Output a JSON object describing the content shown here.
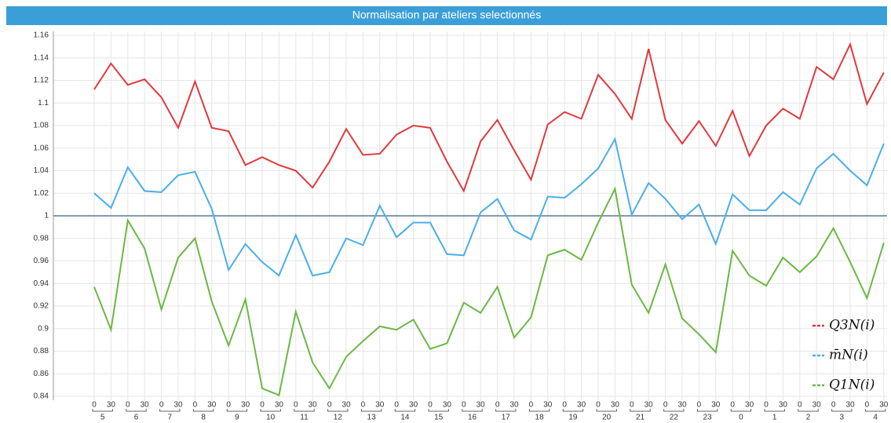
{
  "chart_data": {
    "type": "line",
    "title": "Normalisation par ateliers selectionnés",
    "categories": [
      [
        "5",
        "0"
      ],
      [
        "5",
        "30"
      ],
      [
        "6",
        "0"
      ],
      [
        "6",
        "30"
      ],
      [
        "7",
        "0"
      ],
      [
        "7",
        "30"
      ],
      [
        "8",
        "0"
      ],
      [
        "8",
        "30"
      ],
      [
        "9",
        "0"
      ],
      [
        "9",
        "30"
      ],
      [
        "10",
        "0"
      ],
      [
        "10",
        "30"
      ],
      [
        "11",
        "0"
      ],
      [
        "11",
        "30"
      ],
      [
        "12",
        "0"
      ],
      [
        "12",
        "30"
      ],
      [
        "13",
        "0"
      ],
      [
        "13",
        "30"
      ],
      [
        "14",
        "0"
      ],
      [
        "14",
        "30"
      ],
      [
        "15",
        "0"
      ],
      [
        "15",
        "30"
      ],
      [
        "16",
        "0"
      ],
      [
        "16",
        "30"
      ],
      [
        "17",
        "0"
      ],
      [
        "17",
        "30"
      ],
      [
        "18",
        "0"
      ],
      [
        "18",
        "30"
      ],
      [
        "19",
        "0"
      ],
      [
        "19",
        "30"
      ],
      [
        "20",
        "0"
      ],
      [
        "20",
        "30"
      ],
      [
        "21",
        "0"
      ],
      [
        "21",
        "30"
      ],
      [
        "22",
        "0"
      ],
      [
        "22",
        "30"
      ],
      [
        "23",
        "0"
      ],
      [
        "23",
        "30"
      ],
      [
        "0",
        "0"
      ],
      [
        "0",
        "30"
      ],
      [
        "1",
        "0"
      ],
      [
        "1",
        "30"
      ],
      [
        "2",
        "0"
      ],
      [
        "2",
        "30"
      ],
      [
        "3",
        "0"
      ],
      [
        "3",
        "30"
      ],
      [
        "4",
        "0"
      ],
      [
        "4",
        "30"
      ]
    ],
    "series": [
      {
        "name": "Q3N(i)",
        "color": "#e0393e",
        "values": [
          1.112,
          1.135,
          1.116,
          1.121,
          1.105,
          1.078,
          1.119,
          1.078,
          1.075,
          1.045,
          1.052,
          1.045,
          1.04,
          1.025,
          1.048,
          1.077,
          1.054,
          1.055,
          1.072,
          1.08,
          1.078,
          1.048,
          1.022,
          1.066,
          1.085,
          1.058,
          1.032,
          1.081,
          1.092,
          1.086,
          1.125,
          1.108,
          1.086,
          1.148,
          1.085,
          1.064,
          1.084,
          1.062,
          1.093,
          1.053,
          1.08,
          1.095,
          1.086,
          1.132,
          1.121,
          1.152,
          1.099,
          1.127
        ]
      },
      {
        "name": "m̄N(i)",
        "color": "#4aaee8",
        "values": [
          1.02,
          1.007,
          1.043,
          1.022,
          1.021,
          1.036,
          1.039,
          1.006,
          0.952,
          0.975,
          0.959,
          0.947,
          0.983,
          0.947,
          0.95,
          0.98,
          0.974,
          1.009,
          0.981,
          0.994,
          0.994,
          0.966,
          0.965,
          1.003,
          1.015,
          0.987,
          0.979,
          1.017,
          1.016,
          1.028,
          1.042,
          1.068,
          1.001,
          1.029,
          1.015,
          0.997,
          1.01,
          0.975,
          1.019,
          1.005,
          1.005,
          1.021,
          1.01,
          1.042,
          1.055,
          1.04,
          1.027,
          1.064
        ]
      },
      {
        "name": "Q1N(i)",
        "color": "#6ab844",
        "values": [
          0.937,
          0.899,
          0.996,
          0.971,
          0.917,
          0.963,
          0.98,
          0.924,
          0.885,
          0.926,
          0.847,
          0.841,
          0.915,
          0.87,
          0.847,
          0.875,
          0.889,
          0.902,
          0.899,
          0.908,
          0.882,
          0.887,
          0.923,
          0.914,
          0.937,
          0.892,
          0.91,
          0.965,
          0.97,
          0.961,
          0.994,
          1.024,
          0.939,
          0.914,
          0.957,
          0.909,
          0.895,
          0.879,
          0.969,
          0.947,
          0.938,
          0.963,
          0.95,
          0.964,
          0.989,
          0.959,
          0.927,
          0.976
        ]
      }
    ],
    "ylim": [
      0.84,
      1.16
    ],
    "yticks": [
      0.84,
      0.86,
      0.88,
      0.9,
      0.92,
      0.94,
      0.96,
      0.98,
      1,
      1.02,
      1.04,
      1.06,
      1.08,
      1.1,
      1.12,
      1.14,
      1.16
    ],
    "hline": 1,
    "hline_color": "#5b7a99",
    "grid": true,
    "legend": "lower right"
  }
}
